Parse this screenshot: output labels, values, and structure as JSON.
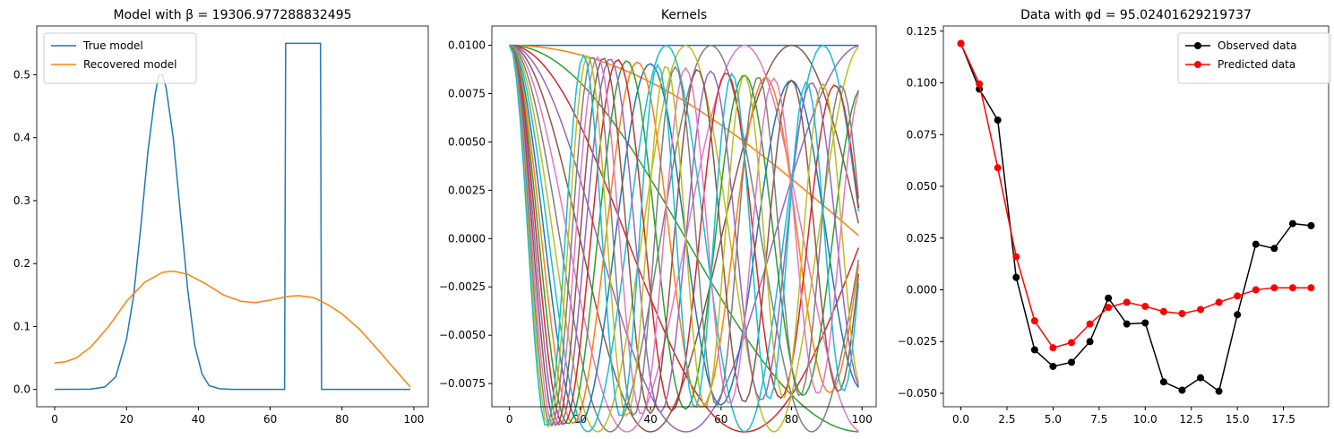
{
  "colors": {
    "tab10": [
      "#1f77b4",
      "#ff7f0e",
      "#2ca02c",
      "#d62728",
      "#9467bd",
      "#8c564b",
      "#e377c2",
      "#7f7f7f",
      "#bcbd22",
      "#17becf"
    ],
    "observed": "#000000",
    "predicted": "#ff0000"
  },
  "chart_data": [
    {
      "type": "line",
      "title": "Model with β = 19306.977288832495",
      "xlim": [
        -5,
        104
      ],
      "ylim": [
        -0.0275,
        0.5775
      ],
      "xticks": [
        0,
        20,
        40,
        60,
        80,
        100
      ],
      "yticks": [
        0.0,
        0.1,
        0.2,
        0.3,
        0.4,
        0.5
      ],
      "ytick_labels": [
        "0.0",
        "0.1",
        "0.2",
        "0.3",
        "0.4",
        "0.5"
      ],
      "legend": "top-left",
      "series": [
        {
          "name": "True model",
          "points": [
            [
              0,
              0
            ],
            [
              10,
              0.0005
            ],
            [
              14,
              0.004
            ],
            [
              17,
              0.02
            ],
            [
              20,
              0.08
            ],
            [
              22,
              0.15
            ],
            [
              24,
              0.26
            ],
            [
              26,
              0.38
            ],
            [
              28,
              0.47
            ],
            [
              29,
              0.5
            ],
            [
              30,
              0.5
            ],
            [
              31,
              0.48
            ],
            [
              33,
              0.4
            ],
            [
              35,
              0.28
            ],
            [
              37,
              0.16
            ],
            [
              39,
              0.07
            ],
            [
              41,
              0.025
            ],
            [
              43,
              0.006
            ],
            [
              46,
              0.001
            ],
            [
              50,
              0
            ],
            [
              64,
              0
            ],
            [
              64.3,
              0.55
            ],
            [
              74,
              0.55
            ],
            [
              74.3,
              0
            ],
            [
              99,
              0
            ]
          ]
        },
        {
          "name": "Recovered model",
          "points": [
            [
              0,
              0.042
            ],
            [
              3,
              0.044
            ],
            [
              6,
              0.05
            ],
            [
              10,
              0.067
            ],
            [
              15,
              0.1
            ],
            [
              20,
              0.14
            ],
            [
              25,
              0.17
            ],
            [
              30,
              0.186
            ],
            [
              33,
              0.188
            ],
            [
              37,
              0.183
            ],
            [
              42,
              0.168
            ],
            [
              47,
              0.15
            ],
            [
              52,
              0.14
            ],
            [
              56,
              0.138
            ],
            [
              60,
              0.142
            ],
            [
              65,
              0.148
            ],
            [
              68,
              0.149
            ],
            [
              72,
              0.146
            ],
            [
              76,
              0.135
            ],
            [
              80,
              0.12
            ],
            [
              85,
              0.095
            ],
            [
              90,
              0.063
            ],
            [
              95,
              0.03
            ],
            [
              99,
              0.004
            ]
          ]
        }
      ]
    },
    {
      "type": "line",
      "title": "Kernels",
      "xlim": [
        -5,
        104
      ],
      "ylim": [
        -0.0087,
        0.011
      ],
      "xticks": [
        0,
        20,
        40,
        60,
        80,
        100
      ],
      "yticks": [
        -0.0075,
        -0.005,
        -0.0025,
        0.0,
        0.0025,
        0.005,
        0.0075,
        0.01
      ],
      "ytick_labels": [
        "−0.0075",
        "−0.0050",
        "−0.0025",
        "0.0000",
        "0.0025",
        "0.0050",
        "0.0075",
        "0.0100"
      ],
      "kernels": [
        {
          "q": 0.0,
          "p": 0.0
        },
        {
          "q": 0.0,
          "p": 0.25
        },
        {
          "q": 0.0,
          "p": 0.5
        },
        {
          "q": 0.0,
          "p": 0.75
        },
        {
          "q": 0.0,
          "p": 1.0
        },
        {
          "q": 0.0,
          "p": 1.25
        },
        {
          "q": 0.0,
          "p": 1.5
        },
        {
          "q": 0.0,
          "p": 1.75
        },
        {
          "q": 0.0,
          "p": 2.0
        },
        {
          "q": 0.0,
          "p": 2.25
        },
        {
          "q": 0.25,
          "p": 2.5
        },
        {
          "q": 0.25,
          "p": 2.75
        },
        {
          "q": 0.25,
          "p": 3.0
        },
        {
          "q": 0.25,
          "p": 3.25
        },
        {
          "q": 0.25,
          "p": 3.5
        },
        {
          "q": 0.25,
          "p": 3.75
        },
        {
          "q": 0.25,
          "p": 4.0
        },
        {
          "q": 0.25,
          "p": 4.25
        },
        {
          "q": 0.25,
          "p": 4.5
        },
        {
          "q": 0.25,
          "p": 4.75
        }
      ]
    },
    {
      "type": "line",
      "title": "Data with φd = 95.02401629219737",
      "xlim": [
        -0.95,
        19.95
      ],
      "ylim": [
        -0.0565,
        0.1275
      ],
      "xticks": [
        0.0,
        2.5,
        5.0,
        7.5,
        10.0,
        12.5,
        15.0,
        17.5
      ],
      "xtick_labels": [
        "0.0",
        "2.5",
        "5.0",
        "7.5",
        "10.0",
        "12.5",
        "15.0",
        "17.5"
      ],
      "yticks": [
        -0.05,
        -0.025,
        0.0,
        0.025,
        0.05,
        0.075,
        0.1,
        0.125
      ],
      "ytick_labels": [
        "−0.050",
        "−0.025",
        "0.000",
        "0.025",
        "0.050",
        "0.075",
        "0.100",
        "0.125"
      ],
      "legend": "top-right",
      "x": [
        0,
        1,
        2,
        3,
        4,
        5,
        6,
        7,
        8,
        9,
        10,
        11,
        12,
        13,
        14,
        15,
        16,
        17,
        18,
        19
      ],
      "series": [
        {
          "name": "Observed data",
          "values": [
            0.119,
            0.097,
            0.082,
            0.006,
            -0.029,
            -0.037,
            -0.035,
            -0.025,
            -0.004,
            -0.0165,
            -0.016,
            -0.0445,
            -0.0485,
            -0.0425,
            -0.049,
            -0.012,
            0.022,
            0.02,
            0.032,
            0.031
          ]
        },
        {
          "name": "Predicted data",
          "values": [
            0.119,
            0.0995,
            0.059,
            0.016,
            -0.015,
            -0.028,
            -0.0255,
            -0.0165,
            -0.0085,
            -0.006,
            -0.008,
            -0.0105,
            -0.0115,
            -0.0095,
            -0.006,
            -0.003,
            0.0,
            0.001,
            0.001,
            0.001
          ]
        }
      ]
    }
  ]
}
